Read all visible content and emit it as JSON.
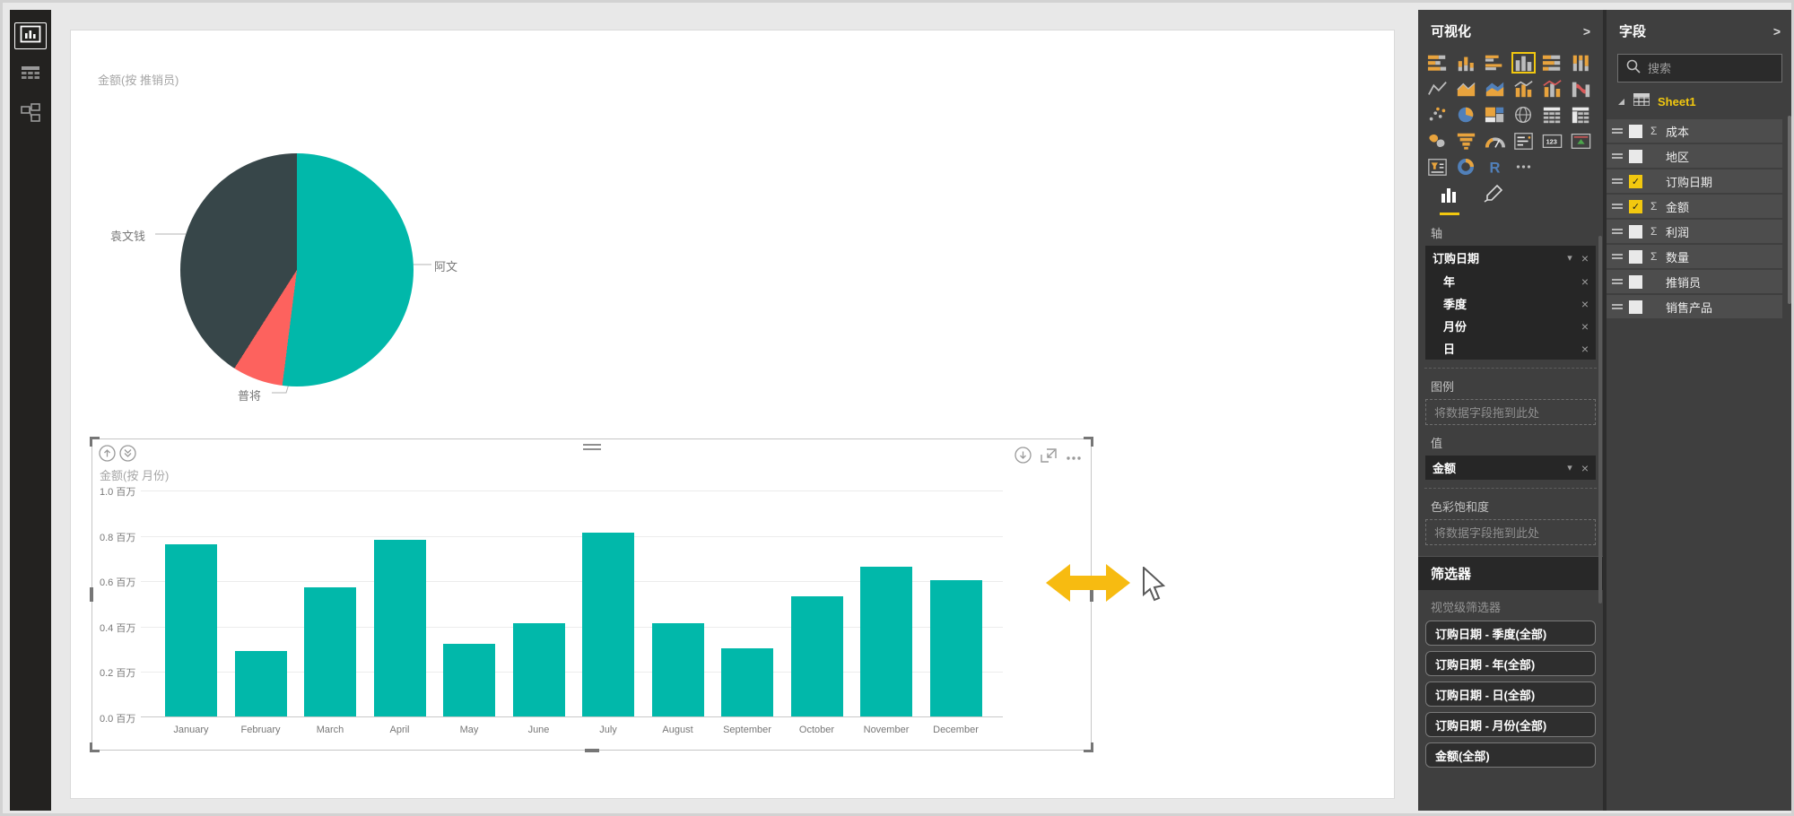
{
  "theme": {
    "accent": "#f2c80f",
    "pane_background": "#3f3f3f",
    "canvas_background": "#e8e8e8",
    "selection_handle": "#767676",
    "resize_arrow_color": "#f7bb11"
  },
  "glyphs": {
    "remove_field": "×",
    "dropdown_caret": "▾",
    "sigma": "Σ",
    "checkmark": "✓"
  },
  "left_nav": {
    "items": [
      {
        "name": "report-view",
        "selected": true
      },
      {
        "name": "data-view",
        "selected": false
      },
      {
        "name": "model-view",
        "selected": false
      }
    ]
  },
  "chart_data": [
    {
      "type": "pie",
      "title": "金额(按 推销员)",
      "labels": [
        "阿文",
        "普将",
        "袁文钱"
      ],
      "values_percent": [
        52,
        7,
        41
      ],
      "colors": [
        "#01b8aa",
        "#fd625e",
        "#374649"
      ],
      "legend": "none",
      "label_style": "outside-callouts"
    },
    {
      "type": "bar",
      "title": "金额(按 月份)",
      "categories": [
        "January",
        "February",
        "March",
        "April",
        "May",
        "June",
        "July",
        "August",
        "September",
        "October",
        "November",
        "December"
      ],
      "values_millions": [
        0.76,
        0.29,
        0.57,
        0.78,
        0.32,
        0.41,
        0.81,
        0.41,
        0.3,
        0.53,
        0.66,
        0.6
      ],
      "y_ticks": [
        "1.0 百万",
        "0.8 百万",
        "0.6 百万",
        "0.4 百万",
        "0.2 百万",
        "0.0 百万"
      ],
      "ylim": [
        0,
        1.0
      ],
      "xlabel": "",
      "ylabel": "",
      "bar_color": "#01b8aa",
      "grid": true,
      "legend": "none"
    }
  ],
  "selected_visual_toolbar": {
    "top_left_icons": [
      "drill-up",
      "drill-down-mode"
    ],
    "top_right_icons": [
      "drill-down",
      "focus-mode",
      "more-options"
    ]
  },
  "visualizations_pane": {
    "title": "可视化",
    "collapse_chevron": ">",
    "visual_icons": [
      "stacked-bar-chart",
      "stacked-column-chart",
      "clustered-bar-chart",
      "clustered-column-chart",
      "hundred-percent-stacked-bar-chart",
      "hundred-percent-stacked-column-chart",
      "line-chart",
      "area-chart",
      "stacked-area-chart",
      "line-and-stacked-column-chart",
      "line-and-clustered-column-chart",
      "ribbon-chart",
      "scatter-chart",
      "pie-chart",
      "treemap",
      "map",
      "table",
      "matrix",
      "filled-map",
      "funnel-chart",
      "gauge",
      "multi-row-card",
      "card",
      "kpi",
      "slicer",
      "donut-chart",
      "r-script-visual",
      "more-options"
    ],
    "selected_icon_index": 3,
    "wells": {
      "axis_label": "轴",
      "axis_field": "订购日期",
      "axis_children": [
        "年",
        "季度",
        "月份",
        "日"
      ],
      "legend_label": "图例",
      "legend_placeholder": "将数据字段拖到此处",
      "values_label": "值",
      "values_field": "金额",
      "saturation_label": "色彩饱和度",
      "saturation_placeholder": "将数据字段拖到此处"
    },
    "filters": {
      "title": "筛选器",
      "visual_level_label": "视觉级筛选器",
      "chips": [
        "订购日期 - 季度(全部)",
        "订购日期 - 年(全部)",
        "订购日期 - 日(全部)",
        "订购日期 - 月份(全部)",
        "金额(全部)"
      ]
    }
  },
  "fields_pane": {
    "title": "字段",
    "collapse_chevron": ">",
    "search_placeholder": "搜索",
    "table_name": "Sheet1",
    "fields": [
      {
        "label": "成本",
        "numeric": true,
        "checked": false
      },
      {
        "label": "地区",
        "numeric": false,
        "checked": false
      },
      {
        "label": "订购日期",
        "numeric": false,
        "checked": true
      },
      {
        "label": "金额",
        "numeric": true,
        "checked": true
      },
      {
        "label": "利润",
        "numeric": true,
        "checked": false
      },
      {
        "label": "数量",
        "numeric": true,
        "checked": false
      },
      {
        "label": "推销员",
        "numeric": false,
        "checked": false
      },
      {
        "label": "销售产品",
        "numeric": false,
        "checked": false
      }
    ]
  }
}
